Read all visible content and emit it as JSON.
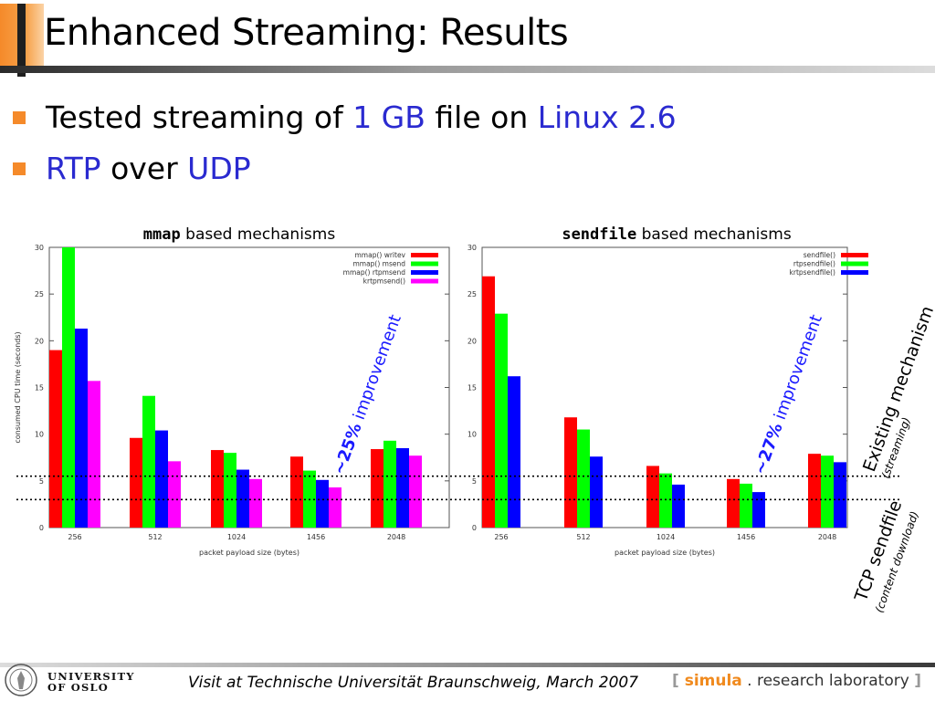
{
  "slide": {
    "title": "Enhanced Streaming: Results",
    "bullets": [
      {
        "parts": [
          {
            "t": "Tested streaming of ",
            "h": false
          },
          {
            "t": "1 GB",
            "h": true
          },
          {
            "t": " file on ",
            "h": false
          },
          {
            "t": "Linux 2.6",
            "h": true
          }
        ]
      },
      {
        "parts": [
          {
            "t": "RTP",
            "h": true
          },
          {
            "t": " over ",
            "h": false
          },
          {
            "t": "UDP",
            "h": true
          }
        ]
      }
    ]
  },
  "chart_data": [
    {
      "type": "bar",
      "title_code": "mmap",
      "title_rest": " based mechanisms",
      "categories": [
        "256",
        "512",
        "1024",
        "1456",
        "2048"
      ],
      "xlabel": "packet payload size (bytes)",
      "ylabel": "consumed CPU time (seconds)",
      "ylim": [
        0,
        30
      ],
      "yticks": [
        0,
        5,
        10,
        15,
        20,
        25,
        30
      ],
      "legend_position": "top-right",
      "series": [
        {
          "name": "mmap() writev",
          "color": "#ff0000",
          "values": [
            19,
            9.6,
            8.3,
            7.6,
            8.4
          ]
        },
        {
          "name": "mmap() msend",
          "color": "#00ff00",
          "values": [
            30,
            14.1,
            8.0,
            6.1,
            9.3
          ]
        },
        {
          "name": "mmap() rtpmsend",
          "color": "#0000ff",
          "values": [
            21.3,
            10.4,
            6.2,
            5.1,
            8.5
          ]
        },
        {
          "name": "krtpmsend()",
          "color": "#ff00ff",
          "values": [
            15.7,
            7.1,
            5.2,
            4.3,
            7.7
          ]
        }
      ]
    },
    {
      "type": "bar",
      "title_code": "sendfile",
      "title_rest": " based mechanisms",
      "categories": [
        "256",
        "512",
        "1024",
        "1456",
        "2048"
      ],
      "xlabel": "packet payload size (bytes)",
      "ylabel": "",
      "ylim": [
        0,
        30
      ],
      "yticks": [
        0,
        5,
        10,
        15,
        20,
        25,
        30
      ],
      "legend_position": "top-right",
      "series": [
        {
          "name": "sendfile()",
          "color": "#ff0000",
          "values": [
            26.9,
            11.8,
            6.6,
            5.2,
            7.9
          ]
        },
        {
          "name": "rtpsendfile()",
          "color": "#00ff00",
          "values": [
            22.9,
            10.5,
            5.8,
            4.7,
            7.7
          ]
        },
        {
          "name": "krtpsendfile()",
          "color": "#0000ff",
          "values": [
            16.2,
            7.6,
            4.6,
            3.8,
            7.0
          ]
        }
      ]
    }
  ],
  "reference_lines": [
    {
      "value": 5.5,
      "label": "Existing mechanism",
      "sublabel": "(streaming)"
    },
    {
      "value": 3.0,
      "label": "TCP sendfile",
      "sublabel": "(content download)"
    }
  ],
  "annotations": [
    {
      "bold": "~25%",
      "rest": " improvement",
      "color": "#1a1aff"
    },
    {
      "bold": "~27%",
      "rest": " improvement",
      "color": "#1a1aff"
    }
  ],
  "footer": {
    "university_line1": "UNIVERSITY",
    "university_line2": "OF OSLO",
    "text": "Visit at Technische Universität Braunschweig, March 2007",
    "simula_open": "[ ",
    "simula_name": "simula",
    "simula_rest": " . research laboratory ",
    "simula_close": "]"
  }
}
